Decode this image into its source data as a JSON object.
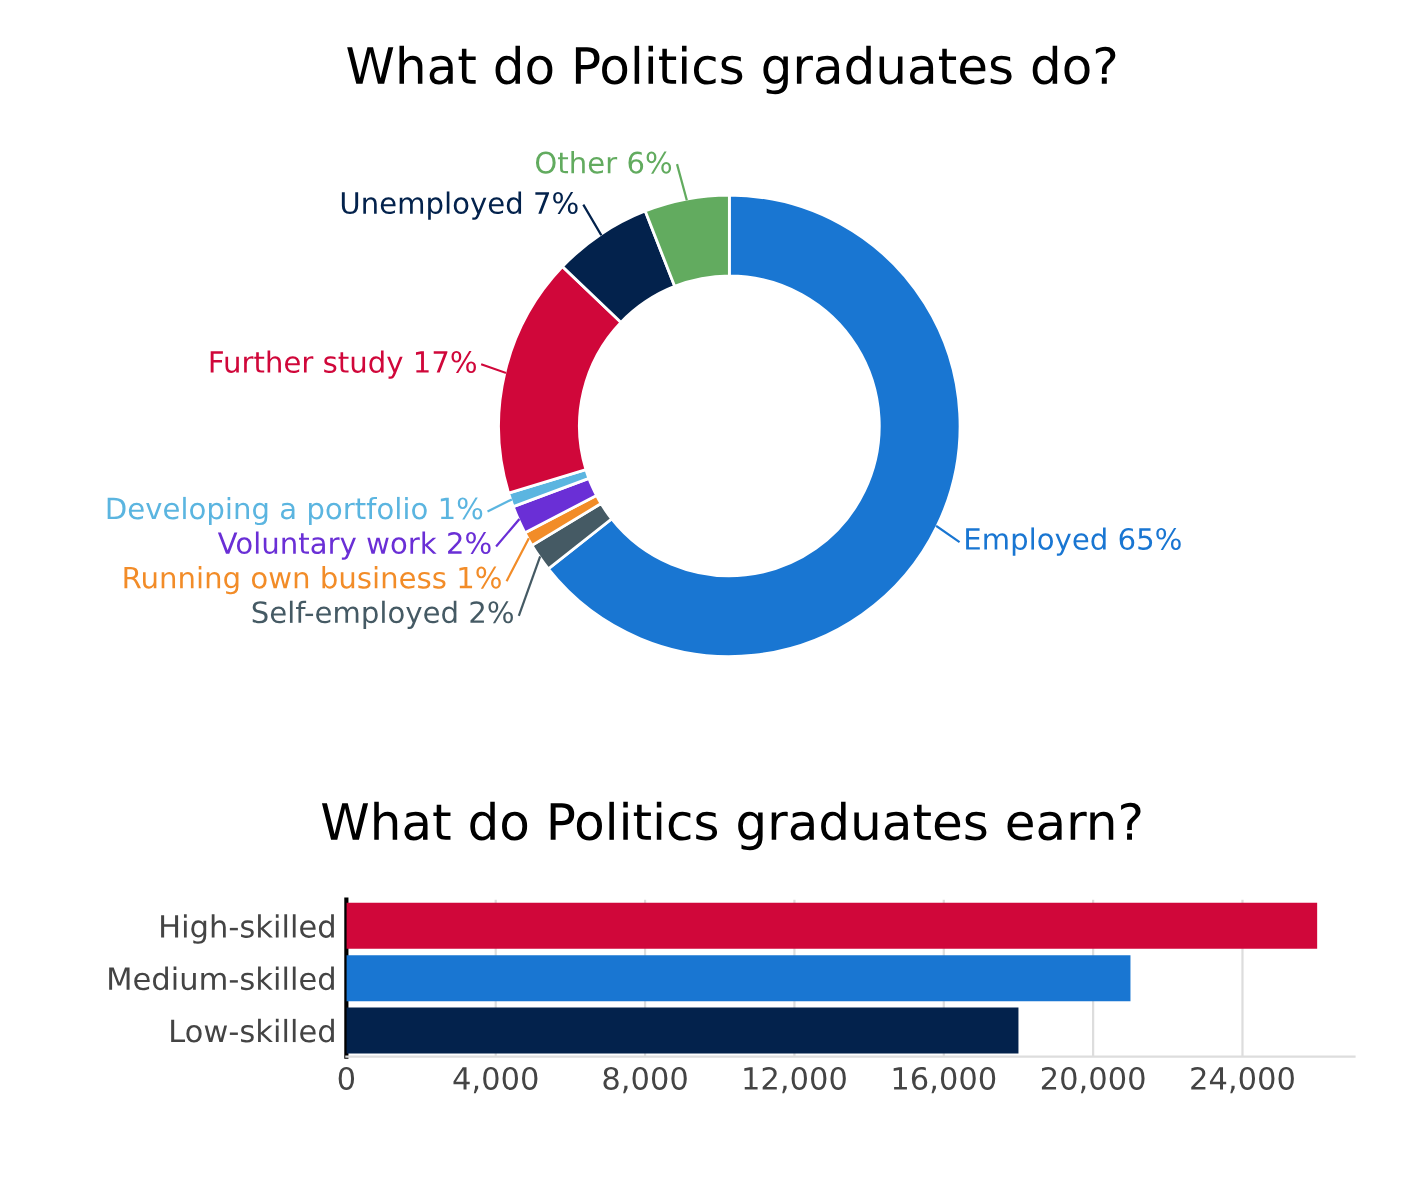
{
  "chart_data": [
    {
      "type": "donut",
      "title": "What do Politics graduates do?",
      "categories": [
        "Employed",
        "Self-employed",
        "Running own business",
        "Voluntary work",
        "Developing a portfolio",
        "Further study",
        "Unemployed",
        "Other"
      ],
      "values": [
        65,
        2,
        1,
        2,
        1,
        17,
        7,
        6
      ],
      "value_labels": [
        "65%",
        "2%",
        "1%",
        "2%",
        "1%",
        "17%",
        "7%",
        "6%"
      ],
      "colors": [
        "#1976d2",
        "#455a64",
        "#f28c28",
        "#6a2fd6",
        "#5bb5e0",
        "#d0073a",
        "#03224c",
        "#62ab5f"
      ]
    },
    {
      "type": "bar",
      "orientation": "horizontal",
      "title": "What do Politics graduates earn?",
      "categories": [
        "High-skilled",
        "Medium-skilled",
        "Low-skilled"
      ],
      "values": [
        26000,
        21000,
        18000
      ],
      "colors": [
        "#d0073a",
        "#1976d2",
        "#03224c"
      ],
      "xlim": [
        0,
        27000
      ],
      "xticks": [
        {
          "value": 0,
          "label": "0"
        },
        {
          "value": 4000,
          "label": "4,000"
        },
        {
          "value": 8000,
          "label": "8,000"
        },
        {
          "value": 12000,
          "label": "12,000"
        },
        {
          "value": 16000,
          "label": "16,000"
        },
        {
          "value": 20000,
          "label": "20,000"
        },
        {
          "value": 24000,
          "label": "24,000"
        }
      ],
      "grid": "x"
    }
  ]
}
